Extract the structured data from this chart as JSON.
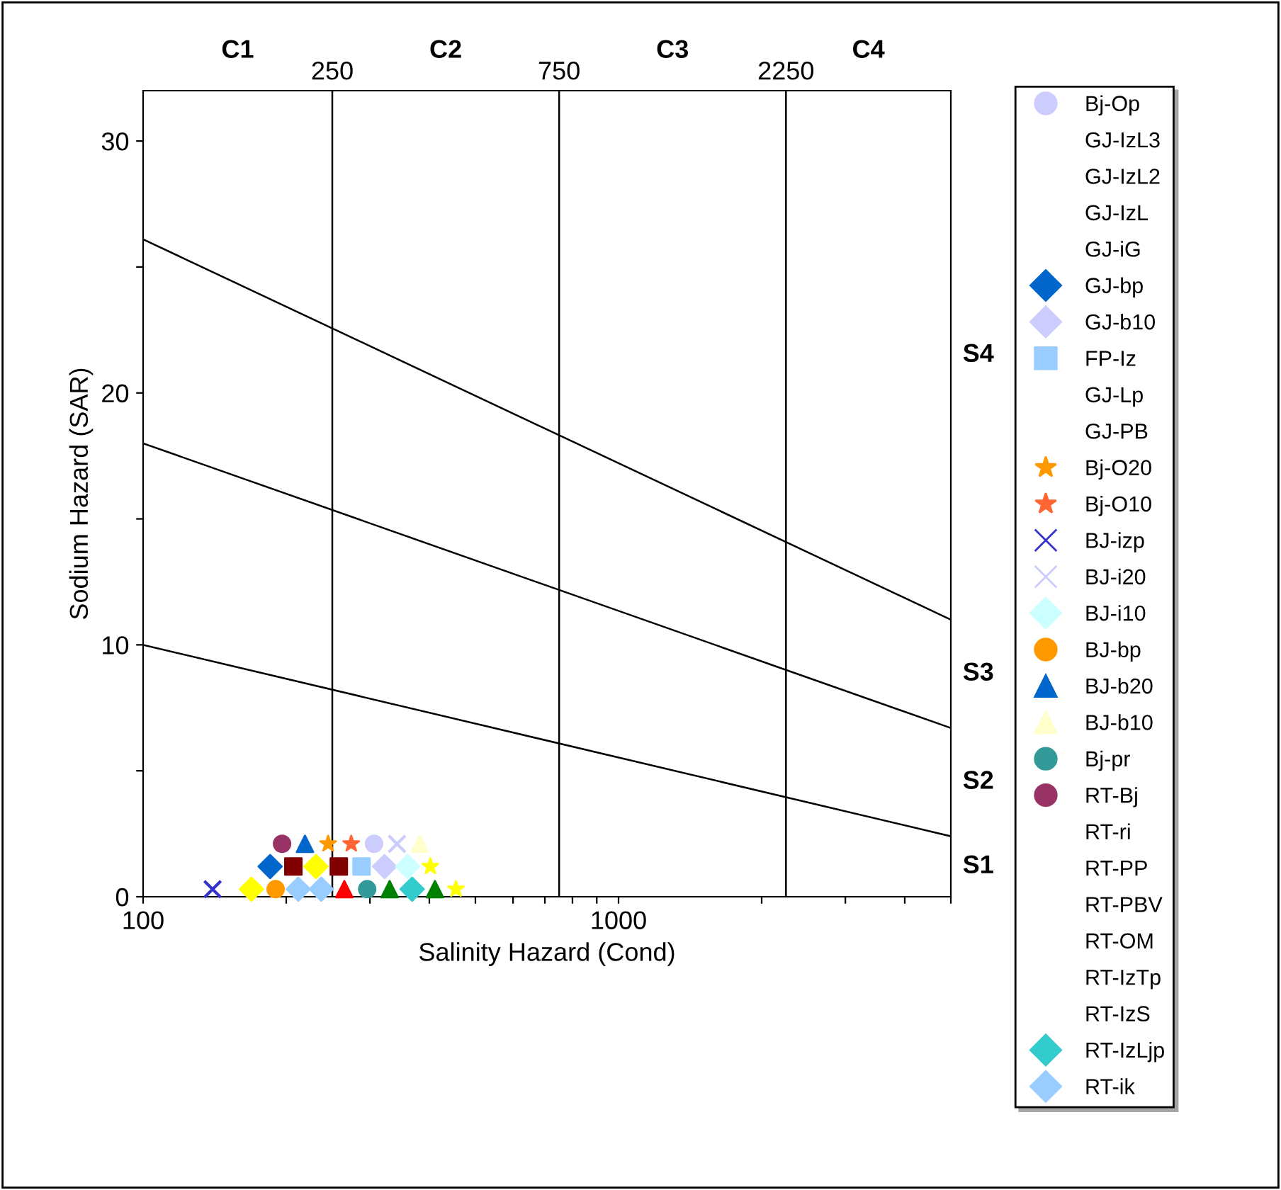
{
  "chart_data": {
    "type": "scatter",
    "xlabel": "Salinity Hazard (Cond)",
    "ylabel": "Sodium Hazard (SAR)",
    "log": "x",
    "xlim": [
      100,
      5000
    ],
    "xticks": [
      100,
      {
        "value": 200,
        "label": null
      },
      {
        "value": 300,
        "label": null
      },
      {
        "value": 400,
        "label": null
      },
      {
        "value": 500,
        "label": null
      },
      {
        "value": 600,
        "label": null
      },
      {
        "value": 700,
        "label": null
      },
      {
        "value": 800,
        "label": null
      },
      {
        "value": 900,
        "label": null
      },
      1000,
      {
        "value": 2000,
        "label": null
      },
      {
        "value": 3000,
        "label": null
      },
      {
        "value": 4000,
        "label": null
      },
      {
        "value": 5000,
        "label": null
      }
    ],
    "ylim": [
      0,
      32
    ],
    "yticks": [
      0,
      {
        "value": 5,
        "label": null
      },
      10,
      {
        "value": 15,
        "label": null
      },
      20,
      {
        "value": 25,
        "label": null
      },
      30
    ],
    "grid": false,
    "legend": "right",
    "ref_lines": [
      {
        "axis": "x",
        "value": 250,
        "label": "250",
        "color": "#000000"
      },
      {
        "axis": "x",
        "value": 750,
        "label": "750",
        "color": "#000000"
      },
      {
        "axis": "x",
        "value": 2250,
        "label": "2250",
        "color": "#000000"
      }
    ],
    "annotations": [
      "C1",
      "C2",
      "C3",
      "C4",
      "S4",
      "S3",
      "S2",
      "S1"
    ],
    "series": [
      {
        "type": "line",
        "color": "#000000",
        "x": [
          100,
          5000
        ],
        "values": [
          26.1,
          11.0
        ]
      },
      {
        "type": "line",
        "color": "#000000",
        "x": [
          100,
          5000
        ],
        "values": [
          18.0,
          6.7
        ]
      },
      {
        "type": "line",
        "color": "#000000",
        "x": [
          100,
          5000
        ],
        "values": [
          10.0,
          2.4
        ]
      },
      {
        "type": "scatter",
        "marker": "square",
        "color": "#800000",
        "x": [
          207,
          258
        ],
        "values": [
          1.2,
          1.2
        ]
      },
      {
        "type": "scatter",
        "marker": "diamond",
        "color": "#ffff00",
        "x": [
          169,
          231
        ],
        "values": [
          0.3,
          1.2
        ]
      },
      {
        "type": "scatter",
        "marker": "triangle",
        "color": "#008000",
        "x": [
          330,
          411
        ],
        "values": [
          0.3,
          0.3
        ]
      },
      {
        "type": "scatter",
        "marker": "star",
        "color": "#ffff00",
        "x": [
          402,
          455
        ],
        "values": [
          1.2,
          0.3
        ]
      },
      {
        "type": "scatter",
        "marker": "triangle",
        "color": "#ff0000",
        "x": [
          265
        ],
        "values": [
          0.3
        ]
      },
      {
        "name": "Bj-Op",
        "marker": "circle",
        "color": "#ccccff",
        "x": [
          306
        ],
        "values": [
          2.1
        ]
      },
      {
        "name": "GJ-IzL3"
      },
      {
        "name": "GJ-IzL2"
      },
      {
        "name": "GJ-IzL"
      },
      {
        "name": "GJ-iG"
      },
      {
        "name": "GJ-bp",
        "marker": "diamond",
        "color": "#0066cc",
        "x": [
          185
        ],
        "values": [
          1.2
        ]
      },
      {
        "name": "GJ-b10",
        "marker": "diamond",
        "color": "#ccccff",
        "x": [
          322
        ],
        "values": [
          1.2
        ]
      },
      {
        "name": "FP-Iz",
        "marker": "square",
        "color": "#99ccff",
        "x": [
          288
        ],
        "values": [
          1.2
        ]
      },
      {
        "name": "GJ-Lp"
      },
      {
        "name": "GJ-PB"
      },
      {
        "name": "Bj-O20",
        "marker": "star",
        "color": "#ff9900",
        "x": [
          245
        ],
        "values": [
          2.1
        ]
      },
      {
        "name": "Bj-O10",
        "marker": "star",
        "color": "#ff6633",
        "x": [
          274
        ],
        "values": [
          2.1
        ]
      },
      {
        "name": "BJ-izp",
        "marker": "cross",
        "color": "#3333cc",
        "x": [
          140
        ],
        "values": [
          0.3
        ]
      },
      {
        "name": "BJ-i20",
        "marker": "cross",
        "color": "#ccccff",
        "x": [
          342
        ],
        "values": [
          2.1
        ]
      },
      {
        "name": "BJ-i10",
        "marker": "diamond",
        "color": "#ccffff",
        "x": [
          360
        ],
        "values": [
          1.2
        ]
      },
      {
        "name": "BJ-bp",
        "marker": "circle",
        "color": "#ff9900",
        "x": [
          190
        ],
        "values": [
          0.3
        ]
      },
      {
        "name": "BJ-b20",
        "marker": "triangle",
        "color": "#0066cc",
        "x": [
          219
        ],
        "values": [
          2.1
        ]
      },
      {
        "name": "BJ-b10",
        "marker": "triangle",
        "color": "#ffffcc",
        "x": [
          382
        ],
        "values": [
          2.1
        ]
      },
      {
        "name": "Bj-pr",
        "marker": "circle",
        "color": "#339999",
        "x": [
          296
        ],
        "values": [
          0.3
        ]
      },
      {
        "name": "RT-Bj",
        "marker": "circle",
        "color": "#993366",
        "x": [
          196
        ],
        "values": [
          2.1
        ]
      },
      {
        "name": "RT-ri"
      },
      {
        "name": "RT-PP"
      },
      {
        "name": "RT-PBV"
      },
      {
        "name": "RT-OM"
      },
      {
        "name": "RT-IzTp"
      },
      {
        "name": "RT-IzS"
      },
      {
        "name": "RT-IzLjp",
        "marker": "diamond",
        "color": "#33cccc",
        "x": [
          368
        ],
        "values": [
          0.3
        ]
      },
      {
        "name": "RT-ik",
        "marker": "diamond",
        "color": "#99ccff",
        "x": [
          212,
          237
        ],
        "values": [
          0.3,
          0.3
        ]
      }
    ]
  }
}
